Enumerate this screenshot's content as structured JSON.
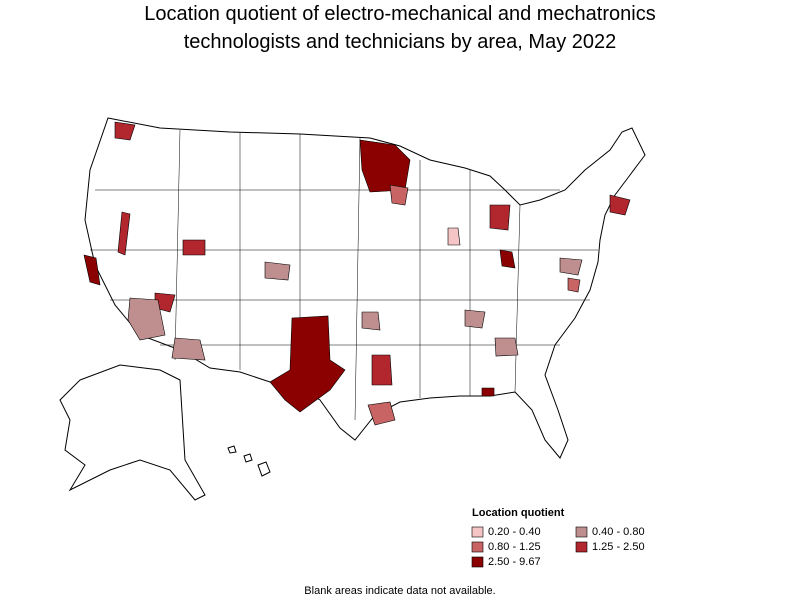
{
  "title_lines": [
    "Location quotient of electro-mechanical and mechatronics",
    "technologists and technicians by area, May 2022"
  ],
  "legend": {
    "title": "Location quotient",
    "items": [
      {
        "label": "0.20 - 0.40",
        "color": "#f5c4c4"
      },
      {
        "label": "0.40 - 0.80",
        "color": "#bf8f8f"
      },
      {
        "label": "0.80 - 1.25",
        "color": "#c86464"
      },
      {
        "label": "1.25 - 2.50",
        "color": "#b2262e"
      },
      {
        "label": "2.50 - 9.67",
        "color": "#8b0000"
      }
    ]
  },
  "note": "Blank areas indicate data not available."
}
